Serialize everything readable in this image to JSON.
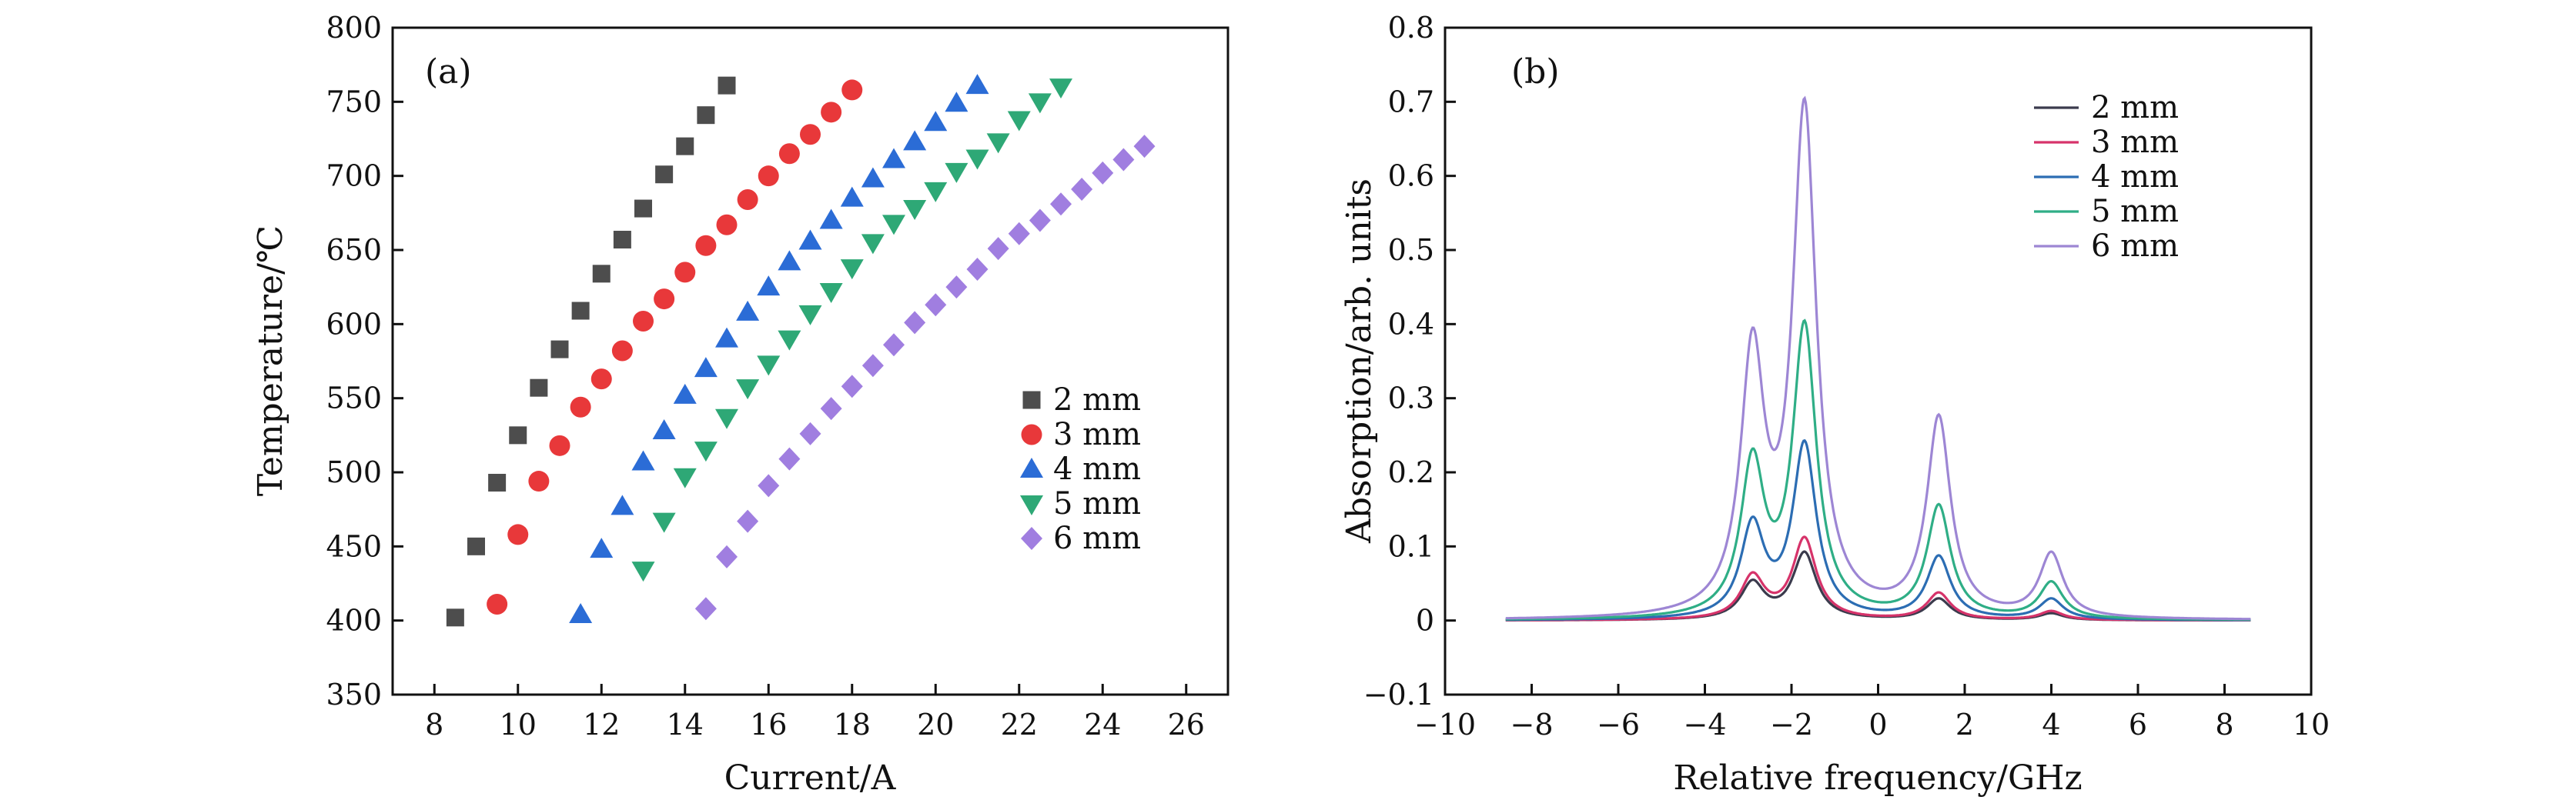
{
  "chart_data": [
    {
      "type": "scatter",
      "panel_label": "(a)",
      "xlabel": "Current/A",
      "ylabel": "Temperature/℃",
      "xlim": [
        7,
        27
      ],
      "ylim": [
        350,
        800
      ],
      "xticks": [
        8,
        10,
        12,
        14,
        16,
        18,
        20,
        22,
        24,
        26
      ],
      "yticks": [
        350,
        400,
        450,
        500,
        550,
        600,
        650,
        700,
        750,
        800
      ],
      "legend_position": "center-right",
      "series": [
        {
          "name": "2 mm",
          "marker": "square",
          "color": "#4d4d4d",
          "x": [
            8.5,
            9,
            9.5,
            10,
            10.5,
            11,
            11.5,
            12,
            12.5,
            13,
            13.5,
            14,
            14.5,
            15
          ],
          "y": [
            402,
            450,
            493,
            525,
            557,
            583,
            609,
            634,
            657,
            678,
            701,
            720,
            741,
            761
          ]
        },
        {
          "name": "3 mm",
          "marker": "circle",
          "color": "#e8383a",
          "x": [
            9.5,
            10,
            10.5,
            11,
            11.5,
            12,
            12.5,
            13,
            13.5,
            14,
            14.5,
            15,
            15.5,
            16,
            16.5,
            17,
            17.5,
            18
          ],
          "y": [
            411,
            458,
            494,
            518,
            544,
            563,
            582,
            602,
            617,
            635,
            653,
            667,
            684,
            700,
            715,
            728,
            743,
            758
          ]
        },
        {
          "name": "4 mm",
          "marker": "triangle-up",
          "color": "#2b6cd6",
          "x": [
            11.5,
            12,
            12.5,
            13,
            13.5,
            14,
            14.5,
            15,
            15.5,
            16,
            16.5,
            17,
            17.5,
            18,
            18.5,
            19,
            19.5,
            20,
            20.5,
            21
          ],
          "y": [
            404,
            448,
            477,
            507,
            528,
            552,
            570,
            590,
            608,
            625,
            642,
            656,
            670,
            685,
            698,
            711,
            723,
            736,
            749,
            761
          ]
        },
        {
          "name": "5 mm",
          "marker": "triangle-down",
          "color": "#2ea876",
          "x": [
            13,
            13.5,
            14,
            14.5,
            15,
            15.5,
            16,
            16.5,
            17,
            17.5,
            18,
            18.5,
            19,
            19.5,
            20,
            20.5,
            21,
            21.5,
            22,
            22.5,
            23
          ],
          "y": [
            434,
            467,
            497,
            515,
            537,
            557,
            573,
            590,
            607,
            622,
            638,
            655,
            668,
            678,
            690,
            703,
            712,
            723,
            738,
            750,
            760
          ]
        },
        {
          "name": "6 mm",
          "marker": "diamond",
          "color": "#a07ee0",
          "x": [
            14.5,
            15,
            15.5,
            16,
            16.5,
            17,
            17.5,
            18,
            18.5,
            19,
            19.5,
            20,
            20.5,
            21,
            21.5,
            22,
            22.5,
            23,
            23.5,
            24,
            24.5,
            25
          ],
          "y": [
            408,
            443,
            467,
            491,
            509,
            526,
            543,
            558,
            572,
            586,
            601,
            613,
            625,
            637,
            651,
            661,
            670,
            681,
            691,
            702,
            711,
            720
          ]
        }
      ]
    },
    {
      "type": "line",
      "panel_label": "(b)",
      "xlabel": "Relative frequency/GHz",
      "ylabel": "Absorption/arb. units",
      "xlim": [
        -10,
        10
      ],
      "ylim": [
        -0.1,
        0.8
      ],
      "xticks": [
        -10,
        -8,
        -6,
        -4,
        -2,
        0,
        2,
        4,
        6,
        8,
        10
      ],
      "xtick_labels": [
        "−10",
        "−8",
        "−6",
        "−4",
        "−2",
        "0",
        "2",
        "4",
        "6",
        "8",
        "10"
      ],
      "yticks": [
        -0.1,
        0,
        0.1,
        0.2,
        0.3,
        0.4,
        0.5,
        0.6,
        0.7,
        0.8
      ],
      "ytick_labels": [
        "−0.1",
        "0",
        "0.1",
        "0.2",
        "0.3",
        "0.4",
        "0.5",
        "0.6",
        "0.7",
        "0.8"
      ],
      "x_range_of_curves": [
        -8.6,
        8.6
      ],
      "peak_positions": [
        -2.9,
        -1.7,
        1.4,
        4.0
      ],
      "legend_position": "top-right",
      "series": [
        {
          "name": "2 mm",
          "color": "#3b3b4d",
          "peak_values": [
            0.055,
            0.093,
            0.03,
            0.01
          ]
        },
        {
          "name": "3 mm",
          "color": "#d6336a",
          "peak_values": [
            0.065,
            0.113,
            0.038,
            0.013
          ]
        },
        {
          "name": "4 mm",
          "color": "#2c6db3",
          "peak_values": [
            0.14,
            0.243,
            0.088,
            0.03
          ]
        },
        {
          "name": "5 mm",
          "color": "#2fae86",
          "peak_values": [
            0.232,
            0.405,
            0.157,
            0.053
          ]
        },
        {
          "name": "6 mm",
          "color": "#9d86d4",
          "peak_values": [
            0.395,
            0.705,
            0.278,
            0.093
          ]
        }
      ]
    }
  ]
}
